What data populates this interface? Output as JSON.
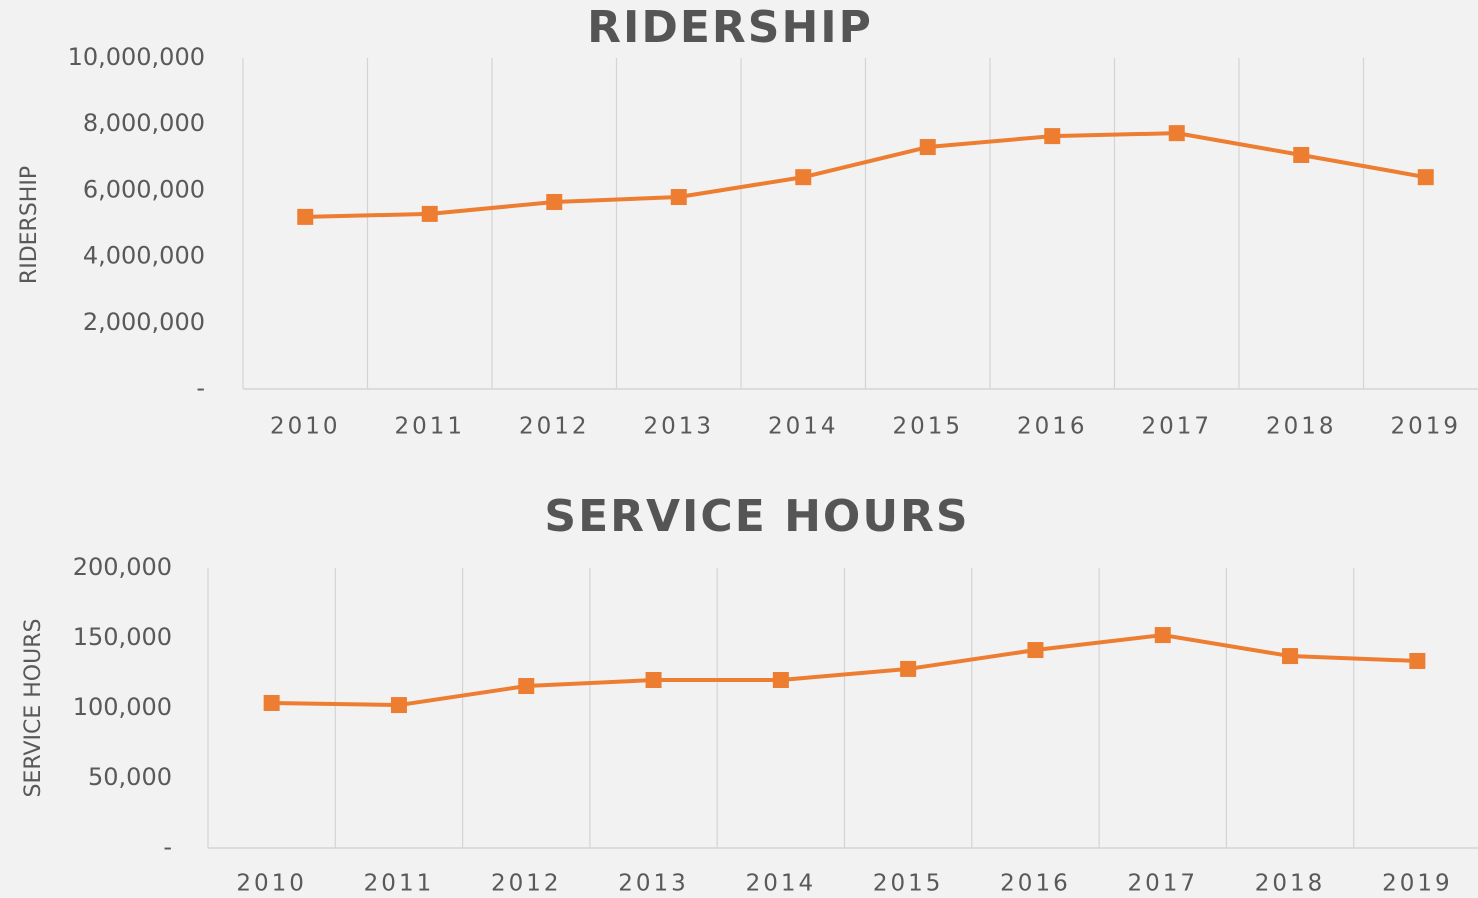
{
  "chart_data": [
    {
      "type": "line",
      "title": "RIDERSHIP",
      "y_label": "RIDERSHIP",
      "categories": [
        "2010",
        "2011",
        "2012",
        "2013",
        "2014",
        "2015",
        "2016",
        "2017",
        "2018",
        "2019"
      ],
      "values": [
        5200000,
        5290000,
        5650000,
        5800000,
        6400000,
        7310000,
        7640000,
        7730000,
        7070000,
        6400000
      ],
      "color": "#ed7d31",
      "ylim": [
        0,
        10000000
      ],
      "yticks": [
        {
          "value": 0,
          "label": "-"
        },
        {
          "value": 2000000,
          "label": "2,000,000"
        },
        {
          "value": 4000000,
          "label": "4,000,000"
        },
        {
          "value": 6000000,
          "label": "6,000,000"
        },
        {
          "value": 8000000,
          "label": "8,000,000"
        },
        {
          "value": 10000000,
          "label": "10,000,000"
        }
      ],
      "grid": false
    },
    {
      "type": "line",
      "title": "SERVICE HOURS",
      "y_label": "SERVICE HOURS",
      "categories": [
        "2010",
        "2011",
        "2012",
        "2013",
        "2014",
        "2015",
        "2016",
        "2017",
        "2018",
        "2019"
      ],
      "values": [
        103600,
        102100,
        115700,
        120000,
        120000,
        127900,
        141400,
        152100,
        137100,
        133600
      ],
      "color": "#ed7d31",
      "ylim": [
        0,
        200000
      ],
      "yticks": [
        {
          "value": 0,
          "label": "-"
        },
        {
          "value": 50000,
          "label": "50,000"
        },
        {
          "value": 100000,
          "label": "100,000"
        },
        {
          "value": 150000,
          "label": "150,000"
        },
        {
          "value": 200000,
          "label": "200,000"
        }
      ],
      "grid": false
    }
  ]
}
